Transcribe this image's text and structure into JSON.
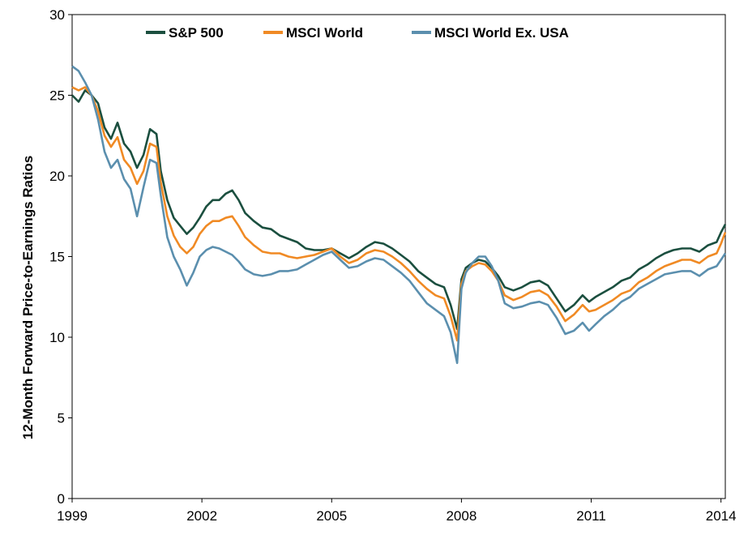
{
  "chart_data": {
    "type": "line",
    "ylabel": "12-Month Forward Price-to-Earnings Ratios",
    "xlabel": "",
    "xlim": [
      1999.0,
      2014.1
    ],
    "ylim": [
      0,
      30
    ],
    "yticks": [
      0,
      5,
      10,
      15,
      20,
      25,
      30
    ],
    "xticks": [
      1999,
      2002,
      2005,
      2008,
      2011,
      2014
    ],
    "legend_position": "top",
    "series": [
      {
        "name": "S&P 500",
        "color": "#1b4f3f",
        "x": [
          1999.0,
          1999.15,
          1999.3,
          1999.45,
          1999.6,
          1999.75,
          1999.9,
          2000.05,
          2000.2,
          2000.35,
          2000.5,
          2000.65,
          2000.8,
          2000.95,
          2001.05,
          2001.2,
          2001.35,
          2001.5,
          2001.65,
          2001.8,
          2001.95,
          2002.1,
          2002.25,
          2002.4,
          2002.55,
          2002.7,
          2002.85,
          2003.0,
          2003.2,
          2003.4,
          2003.6,
          2003.8,
          2004.0,
          2004.2,
          2004.4,
          2004.6,
          2004.8,
          2005.0,
          2005.2,
          2005.4,
          2005.6,
          2005.8,
          2006.0,
          2006.2,
          2006.4,
          2006.6,
          2006.8,
          2007.0,
          2007.2,
          2007.4,
          2007.6,
          2007.75,
          2007.9,
          2008.0,
          2008.1,
          2008.25,
          2008.4,
          2008.55,
          2008.7,
          2008.85,
          2009.0,
          2009.2,
          2009.4,
          2009.6,
          2009.8,
          2010.0,
          2010.2,
          2010.4,
          2010.6,
          2010.8,
          2010.95,
          2011.1,
          2011.3,
          2011.5,
          2011.7,
          2011.9,
          2012.1,
          2012.3,
          2012.5,
          2012.7,
          2012.9,
          2013.1,
          2013.3,
          2013.5,
          2013.7,
          2013.9,
          2014.0,
          2014.1
        ],
        "values": [
          25.0,
          24.6,
          25.3,
          25.0,
          24.5,
          23.0,
          22.3,
          23.3,
          22.0,
          21.5,
          20.5,
          21.3,
          22.9,
          22.6,
          20.3,
          18.5,
          17.4,
          16.9,
          16.4,
          16.8,
          17.4,
          18.1,
          18.5,
          18.5,
          18.9,
          19.1,
          18.5,
          17.7,
          17.2,
          16.8,
          16.7,
          16.3,
          16.1,
          15.9,
          15.5,
          15.4,
          15.4,
          15.5,
          15.2,
          14.9,
          15.2,
          15.6,
          15.9,
          15.8,
          15.5,
          15.1,
          14.7,
          14.1,
          13.7,
          13.3,
          13.1,
          12.0,
          10.5,
          13.6,
          14.3,
          14.6,
          14.8,
          14.7,
          14.3,
          13.8,
          13.1,
          12.9,
          13.1,
          13.4,
          13.5,
          13.2,
          12.4,
          11.6,
          12.0,
          12.6,
          12.2,
          12.5,
          12.8,
          13.1,
          13.5,
          13.7,
          14.2,
          14.5,
          14.9,
          15.2,
          15.4,
          15.5,
          15.5,
          15.3,
          15.7,
          15.9,
          16.5,
          17.0
        ]
      },
      {
        "name": "MSCI World",
        "color": "#f08a24",
        "x": [
          1999.0,
          1999.15,
          1999.3,
          1999.45,
          1999.6,
          1999.75,
          1999.9,
          2000.05,
          2000.2,
          2000.35,
          2000.5,
          2000.65,
          2000.8,
          2000.95,
          2001.05,
          2001.2,
          2001.35,
          2001.5,
          2001.65,
          2001.8,
          2001.95,
          2002.1,
          2002.25,
          2002.4,
          2002.55,
          2002.7,
          2002.85,
          2003.0,
          2003.2,
          2003.4,
          2003.6,
          2003.8,
          2004.0,
          2004.2,
          2004.4,
          2004.6,
          2004.8,
          2005.0,
          2005.2,
          2005.4,
          2005.6,
          2005.8,
          2006.0,
          2006.2,
          2006.4,
          2006.6,
          2006.8,
          2007.0,
          2007.2,
          2007.4,
          2007.6,
          2007.75,
          2007.9,
          2008.0,
          2008.1,
          2008.25,
          2008.4,
          2008.55,
          2008.7,
          2008.85,
          2009.0,
          2009.2,
          2009.4,
          2009.6,
          2009.8,
          2010.0,
          2010.2,
          2010.4,
          2010.6,
          2010.8,
          2010.95,
          2011.1,
          2011.3,
          2011.5,
          2011.7,
          2011.9,
          2012.1,
          2012.3,
          2012.5,
          2012.7,
          2012.9,
          2013.1,
          2013.3,
          2013.5,
          2013.7,
          2013.9,
          2014.0,
          2014.1
        ],
        "values": [
          25.5,
          25.3,
          25.5,
          25.0,
          24.0,
          22.5,
          21.8,
          22.4,
          21.0,
          20.5,
          19.5,
          20.3,
          22.0,
          21.8,
          19.6,
          17.5,
          16.3,
          15.6,
          15.2,
          15.6,
          16.4,
          16.9,
          17.2,
          17.2,
          17.4,
          17.5,
          16.9,
          16.2,
          15.7,
          15.3,
          15.2,
          15.2,
          15.0,
          14.9,
          15.0,
          15.1,
          15.3,
          15.5,
          15.0,
          14.6,
          14.8,
          15.2,
          15.4,
          15.3,
          15.0,
          14.6,
          14.1,
          13.5,
          13.0,
          12.6,
          12.4,
          11.3,
          9.8,
          13.3,
          14.1,
          14.4,
          14.6,
          14.5,
          14.1,
          13.5,
          12.6,
          12.3,
          12.5,
          12.8,
          12.9,
          12.6,
          11.9,
          11.0,
          11.4,
          12.0,
          11.6,
          11.7,
          12.0,
          12.3,
          12.7,
          12.9,
          13.4,
          13.7,
          14.1,
          14.4,
          14.6,
          14.8,
          14.8,
          14.6,
          15.0,
          15.2,
          15.8,
          16.5
        ]
      },
      {
        "name": "MSCI World Ex. USA",
        "color": "#5b8fae",
        "x": [
          1999.0,
          1999.15,
          1999.3,
          1999.45,
          1999.6,
          1999.75,
          1999.9,
          2000.05,
          2000.2,
          2000.35,
          2000.5,
          2000.65,
          2000.8,
          2000.95,
          2001.05,
          2001.2,
          2001.35,
          2001.5,
          2001.65,
          2001.8,
          2001.95,
          2002.1,
          2002.25,
          2002.4,
          2002.55,
          2002.7,
          2002.85,
          2003.0,
          2003.2,
          2003.4,
          2003.6,
          2003.8,
          2004.0,
          2004.2,
          2004.4,
          2004.6,
          2004.8,
          2005.0,
          2005.2,
          2005.4,
          2005.6,
          2005.8,
          2006.0,
          2006.2,
          2006.4,
          2006.6,
          2006.8,
          2007.0,
          2007.2,
          2007.4,
          2007.6,
          2007.75,
          2007.9,
          2008.0,
          2008.1,
          2008.25,
          2008.4,
          2008.55,
          2008.7,
          2008.85,
          2009.0,
          2009.2,
          2009.4,
          2009.6,
          2009.8,
          2010.0,
          2010.2,
          2010.4,
          2010.6,
          2010.8,
          2010.95,
          2011.1,
          2011.3,
          2011.5,
          2011.7,
          2011.9,
          2012.1,
          2012.3,
          2012.5,
          2012.7,
          2012.9,
          2013.1,
          2013.3,
          2013.5,
          2013.7,
          2013.9,
          2014.0,
          2014.1
        ],
        "values": [
          26.8,
          26.5,
          25.8,
          25.0,
          23.5,
          21.5,
          20.5,
          21.0,
          19.8,
          19.2,
          17.5,
          19.3,
          21.0,
          20.8,
          18.8,
          16.2,
          15.0,
          14.2,
          13.2,
          14.0,
          15.0,
          15.4,
          15.6,
          15.5,
          15.3,
          15.1,
          14.7,
          14.2,
          13.9,
          13.8,
          13.9,
          14.1,
          14.1,
          14.2,
          14.5,
          14.8,
          15.1,
          15.3,
          14.8,
          14.3,
          14.4,
          14.7,
          14.9,
          14.8,
          14.4,
          14.0,
          13.5,
          12.8,
          12.1,
          11.7,
          11.3,
          10.3,
          8.4,
          13.0,
          14.0,
          14.6,
          15.0,
          15.0,
          14.4,
          13.5,
          12.1,
          11.8,
          11.9,
          12.1,
          12.2,
          12.0,
          11.2,
          10.2,
          10.4,
          10.9,
          10.4,
          10.8,
          11.3,
          11.7,
          12.2,
          12.5,
          13.0,
          13.3,
          13.6,
          13.9,
          14.0,
          14.1,
          14.1,
          13.8,
          14.2,
          14.4,
          14.8,
          15.2
        ]
      }
    ]
  }
}
